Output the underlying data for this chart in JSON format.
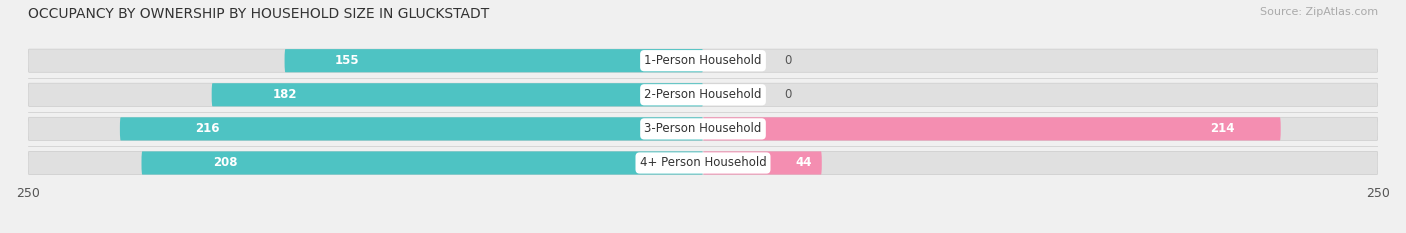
{
  "title": "OCCUPANCY BY OWNERSHIP BY HOUSEHOLD SIZE IN GLUCKSTADT",
  "source": "Source: ZipAtlas.com",
  "categories": [
    "1-Person Household",
    "2-Person Household",
    "3-Person Household",
    "4+ Person Household"
  ],
  "owner_values": [
    155,
    182,
    216,
    208
  ],
  "renter_values": [
    0,
    0,
    214,
    44
  ],
  "owner_color": "#4EC3C3",
  "renter_color": "#F48EB1",
  "bg_color": "#f0f0f0",
  "bar_bg_color": "#e0e0e0",
  "x_max": 250,
  "figsize": [
    14.06,
    2.33
  ],
  "dpi": 100,
  "bar_height": 0.68,
  "title_fontsize": 10,
  "source_fontsize": 8,
  "tick_fontsize": 9,
  "bar_label_fontsize": 8.5,
  "category_fontsize": 8.5,
  "legend_fontsize": 8.5
}
